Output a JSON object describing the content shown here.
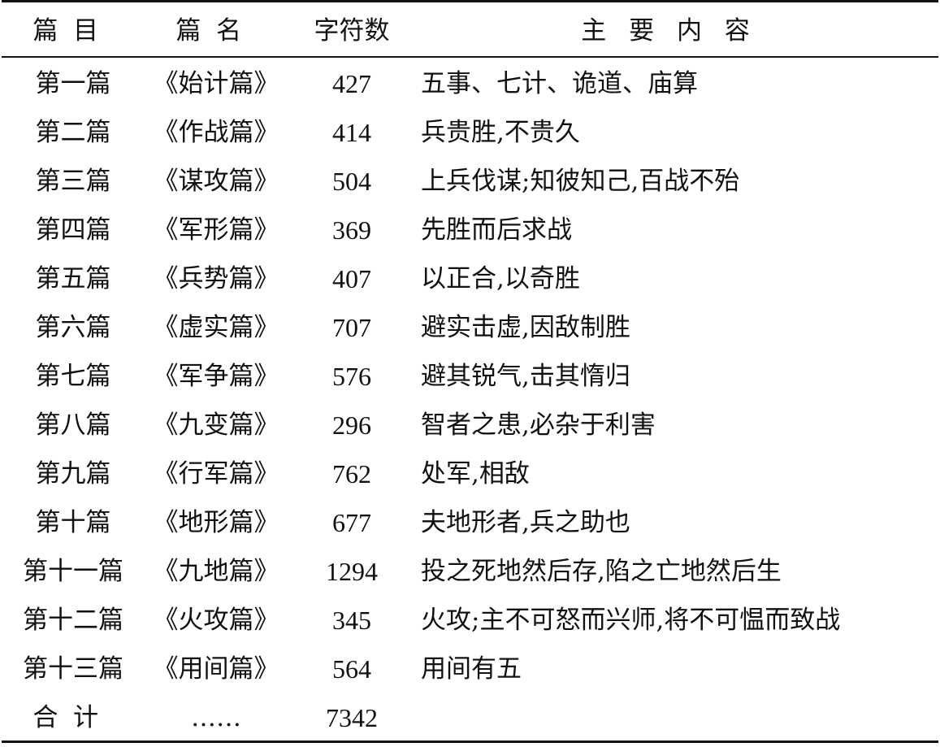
{
  "header": {
    "col1": "篇目",
    "col2": "篇名",
    "col3": "字符数",
    "col4": "主要内容"
  },
  "rows": [
    {
      "chapter": "第一篇",
      "title": "《始计篇》",
      "chars": "427",
      "content": "五事、七计、诡道、庙算"
    },
    {
      "chapter": "第二篇",
      "title": "《作战篇》",
      "chars": "414",
      "content": "兵贵胜,不贵久"
    },
    {
      "chapter": "第三篇",
      "title": "《谋攻篇》",
      "chars": "504",
      "content": "上兵伐谋;知彼知己,百战不殆"
    },
    {
      "chapter": "第四篇",
      "title": "《军形篇》",
      "chars": "369",
      "content": "先胜而后求战"
    },
    {
      "chapter": "第五篇",
      "title": "《兵势篇》",
      "chars": "407",
      "content": "以正合,以奇胜"
    },
    {
      "chapter": "第六篇",
      "title": "《虚实篇》",
      "chars": "707",
      "content": "避实击虚,因敌制胜"
    },
    {
      "chapter": "第七篇",
      "title": "《军争篇》",
      "chars": "576",
      "content": "避其锐气,击其惰归"
    },
    {
      "chapter": "第八篇",
      "title": "《九变篇》",
      "chars": "296",
      "content": "智者之患,必杂于利害"
    },
    {
      "chapter": "第九篇",
      "title": "《行军篇》",
      "chars": "762",
      "content": "处军,相敌"
    },
    {
      "chapter": "第十篇",
      "title": "《地形篇》",
      "chars": "677",
      "content": "夫地形者,兵之助也"
    },
    {
      "chapter": "第十一篇",
      "title": "《九地篇》",
      "chars": "1294",
      "content": "投之死地然后存,陷之亡地然后生"
    },
    {
      "chapter": "第十二篇",
      "title": "《火攻篇》",
      "chars": "345",
      "content": "火攻;主不可怒而兴师,将不可愠而致战"
    },
    {
      "chapter": "第十三篇",
      "title": "《用间篇》",
      "chars": "564",
      "content": "用间有五"
    },
    {
      "chapter": "合计",
      "title": "……",
      "chars": "7342",
      "content": ""
    }
  ]
}
